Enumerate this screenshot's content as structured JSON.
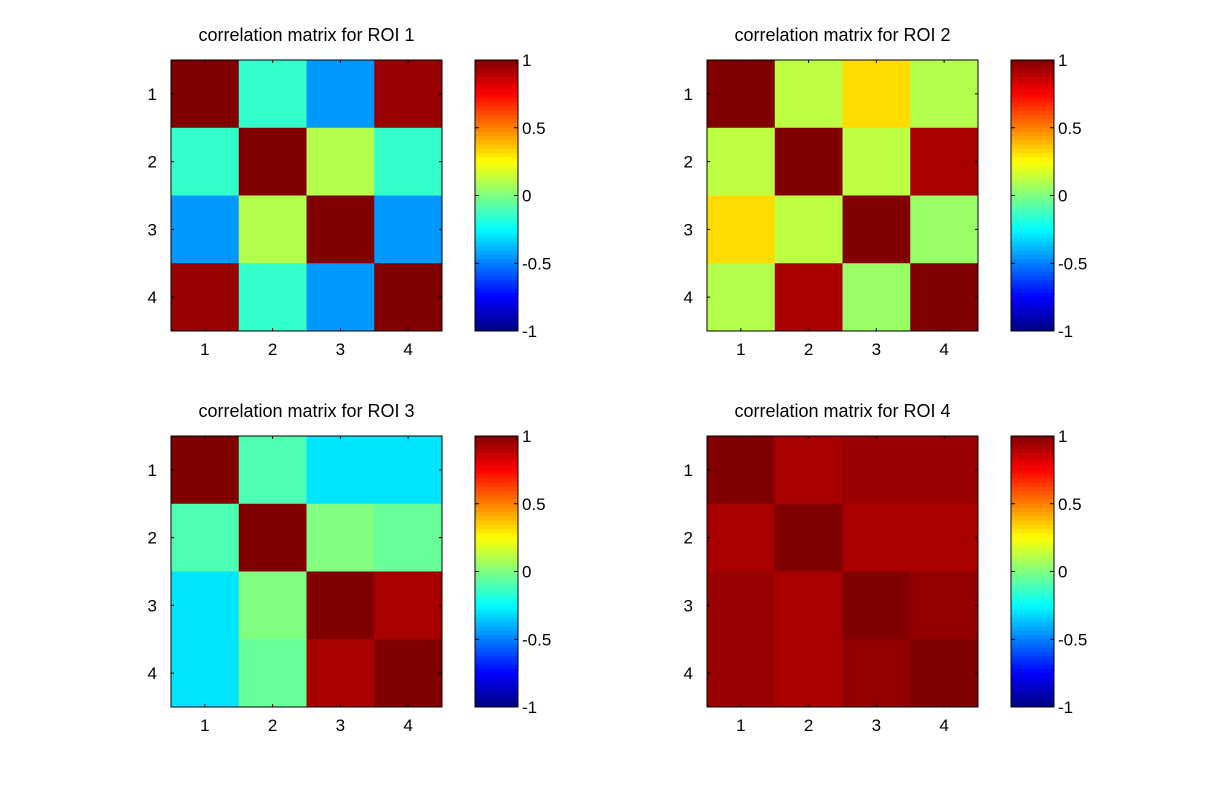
{
  "chart_data": [
    {
      "type": "heatmap",
      "title": "correlation matrix for ROI 1",
      "x_ticks": [
        "1",
        "2",
        "3",
        "4"
      ],
      "y_ticks": [
        "1",
        "2",
        "3",
        "4"
      ],
      "matrix": [
        [
          1.0,
          -0.15,
          -0.45,
          0.95
        ],
        [
          -0.15,
          1.0,
          0.1,
          -0.15
        ],
        [
          -0.45,
          0.1,
          1.0,
          -0.45
        ],
        [
          0.95,
          -0.15,
          -0.45,
          1.0
        ]
      ],
      "colorbar": {
        "colormap": "jet",
        "range": [
          -1,
          1
        ],
        "tick_labels": [
          "1",
          "0.5",
          "0",
          "-0.5",
          "-1"
        ],
        "tick_values": [
          1,
          0.5,
          0,
          -0.5,
          -1
        ]
      }
    },
    {
      "type": "heatmap",
      "title": "correlation matrix for ROI 2",
      "x_ticks": [
        "1",
        "2",
        "3",
        "4"
      ],
      "y_ticks": [
        "1",
        "2",
        "3",
        "4"
      ],
      "matrix": [
        [
          1.0,
          0.12,
          0.32,
          0.1
        ],
        [
          0.12,
          1.0,
          0.12,
          0.92
        ],
        [
          0.32,
          0.12,
          1.0,
          0.05
        ],
        [
          0.1,
          0.92,
          0.05,
          1.0
        ]
      ],
      "colorbar": {
        "colormap": "jet",
        "range": [
          -1,
          1
        ],
        "tick_labels": [
          "1",
          "0.5",
          "0",
          "-0.5",
          "-1"
        ],
        "tick_values": [
          1,
          0.5,
          0,
          -0.5,
          -1
        ]
      }
    },
    {
      "type": "heatmap",
      "title": "correlation matrix for ROI 3",
      "x_ticks": [
        "1",
        "2",
        "3",
        "4"
      ],
      "y_ticks": [
        "1",
        "2",
        "3",
        "4"
      ],
      "matrix": [
        [
          1.0,
          -0.1,
          -0.3,
          -0.3
        ],
        [
          -0.1,
          1.0,
          0.0,
          -0.05
        ],
        [
          -0.3,
          0.0,
          1.0,
          0.92
        ],
        [
          -0.3,
          -0.05,
          0.92,
          1.0
        ]
      ],
      "colorbar": {
        "colormap": "jet",
        "range": [
          -1,
          1
        ],
        "tick_labels": [
          "1",
          "0.5",
          "0",
          "-0.5",
          "-1"
        ],
        "tick_values": [
          1,
          0.5,
          0,
          -0.5,
          -1
        ]
      }
    },
    {
      "type": "heatmap",
      "title": "correlation matrix for ROI 4",
      "x_ticks": [
        "1",
        "2",
        "3",
        "4"
      ],
      "y_ticks": [
        "1",
        "2",
        "3",
        "4"
      ],
      "matrix": [
        [
          1.0,
          0.92,
          0.95,
          0.95
        ],
        [
          0.92,
          1.0,
          0.92,
          0.92
        ],
        [
          0.95,
          0.92,
          1.0,
          0.96
        ],
        [
          0.95,
          0.92,
          0.96,
          1.0
        ]
      ],
      "colorbar": {
        "colormap": "jet",
        "range": [
          -1,
          1
        ],
        "tick_labels": [
          "1",
          "0.5",
          "0",
          "-0.5",
          "-1"
        ],
        "tick_values": [
          1,
          0.5,
          0,
          -0.5,
          -1
        ]
      }
    }
  ]
}
